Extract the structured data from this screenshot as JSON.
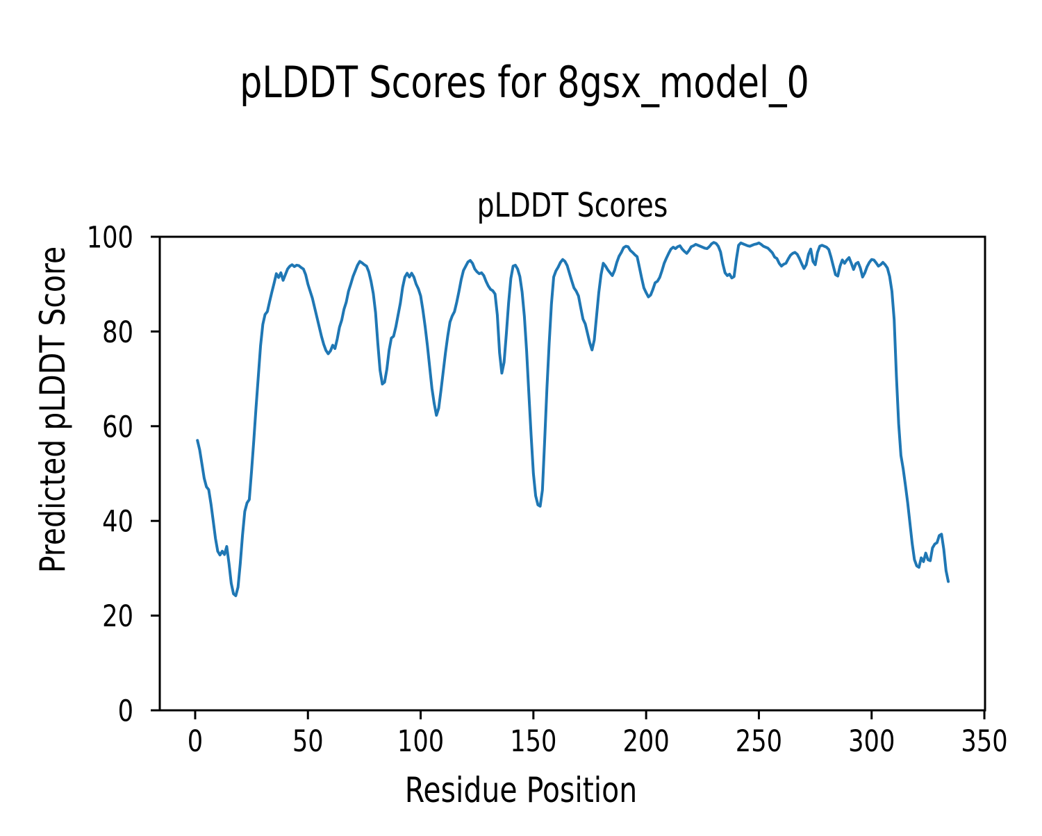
{
  "figure": {
    "suptitle": "pLDDT Scores for 8gsx_model_0",
    "background": "#ffffff"
  },
  "chart_data": {
    "type": "line",
    "title": "pLDDT Scores",
    "xlabel": "Residue Position",
    "ylabel": "Predicted pLDDT Score",
    "xlim": [
      -15.7,
      350.3
    ],
    "ylim": [
      0,
      100
    ],
    "xticks": [
      0,
      50,
      100,
      150,
      200,
      250,
      300,
      350
    ],
    "yticks": [
      0,
      20,
      40,
      60,
      80,
      100
    ],
    "grid": false,
    "legend": null,
    "line_color": "#1f77b4",
    "line_width": 4,
    "series": [
      {
        "name": "pLDDT",
        "x_start": 1,
        "x_step": 1,
        "values": [
          57.0,
          55.0,
          52.0,
          49.0,
          47.2,
          46.6,
          43.6,
          40.0,
          36.3,
          33.6,
          32.8,
          33.6,
          32.9,
          34.6,
          31.0,
          26.8,
          24.6,
          24.2,
          26.0,
          31.0,
          37.0,
          42.0,
          43.8,
          44.5,
          50.5,
          57.0,
          64.0,
          70.5,
          77.0,
          81.5,
          83.6,
          84.2,
          86.3,
          88.3,
          90.2,
          92.2,
          91.4,
          92.4,
          90.8,
          92.0,
          93.2,
          93.8,
          94.1,
          93.7,
          94.0,
          93.9,
          93.5,
          93.2,
          92.0,
          90.0,
          88.5,
          87.0,
          85.0,
          83.0,
          81.0,
          79.0,
          77.3,
          76.0,
          75.3,
          75.9,
          77.1,
          76.4,
          78.4,
          80.9,
          82.4,
          84.7,
          86.2,
          88.5,
          90.0,
          91.6,
          92.8,
          94.0,
          94.8,
          94.5,
          94.1,
          93.8,
          92.6,
          90.6,
          88.0,
          84.0,
          77.5,
          71.8,
          68.9,
          69.3,
          72.0,
          76.0,
          78.6,
          79.0,
          81.0,
          83.5,
          86.0,
          89.3,
          91.5,
          92.3,
          91.5,
          92.3,
          91.5,
          90.0,
          89.0,
          87.5,
          84.5,
          81.0,
          77.0,
          72.5,
          68.0,
          64.8,
          62.3,
          63.8,
          67.5,
          71.5,
          75.5,
          79.0,
          82.0,
          83.3,
          84.2,
          86.2,
          88.5,
          91.0,
          92.9,
          93.8,
          94.7,
          95.0,
          94.4,
          93.2,
          92.6,
          92.2,
          92.4,
          91.8,
          90.6,
          89.6,
          88.9,
          88.6,
          87.9,
          83.5,
          75.5,
          71.2,
          73.5,
          79.5,
          86.0,
          91.2,
          93.8,
          94.0,
          93.2,
          91.6,
          88.3,
          83.2,
          75.8,
          66.8,
          58.0,
          50.0,
          45.3,
          43.4,
          43.1,
          46.5,
          57.0,
          68.0,
          77.5,
          85.8,
          91.5,
          92.8,
          93.6,
          94.6,
          95.2,
          94.8,
          93.9,
          92.3,
          90.7,
          89.2,
          88.5,
          87.5,
          85.0,
          82.6,
          81.6,
          79.6,
          77.6,
          76.1,
          78.2,
          83.2,
          88.2,
          92.0,
          94.4,
          93.8,
          93.0,
          92.4,
          91.8,
          92.9,
          94.6,
          95.9,
          96.7,
          97.7,
          98.0,
          97.9,
          97.1,
          96.7,
          96.2,
          95.8,
          93.6,
          91.3,
          89.2,
          88.2,
          87.3,
          87.7,
          88.9,
          90.3,
          90.6,
          91.4,
          92.8,
          94.4,
          95.5,
          96.5,
          97.4,
          97.8,
          97.5,
          97.9,
          98.1,
          97.4,
          96.9,
          96.5,
          97.1,
          97.9,
          98.1,
          98.4,
          98.2,
          98.0,
          97.8,
          97.6,
          97.5,
          97.9,
          98.5,
          98.8,
          98.6,
          98.0,
          96.8,
          94.3,
          92.4,
          91.8,
          92.1,
          91.3,
          91.6,
          95.2,
          98.2,
          98.7,
          98.5,
          98.3,
          98.1,
          98.0,
          98.2,
          98.4,
          98.5,
          98.7,
          98.4,
          98.0,
          97.8,
          97.6,
          97.1,
          96.6,
          95.7,
          95.4,
          94.4,
          93.8,
          94.2,
          94.4,
          95.3,
          96.1,
          96.5,
          96.7,
          96.3,
          95.4,
          94.3,
          93.3,
          94.1,
          96.3,
          97.4,
          94.8,
          94.1,
          96.7,
          98.0,
          98.2,
          98.0,
          97.8,
          97.3,
          95.7,
          93.8,
          92.0,
          91.7,
          93.8,
          95.1,
          94.4,
          95.1,
          95.6,
          94.4,
          93.1,
          94.3,
          94.6,
          93.4,
          91.5,
          92.4,
          93.7,
          94.6,
          95.2,
          95.1,
          94.5,
          93.8,
          94.1,
          94.6,
          94.1,
          93.4,
          91.6,
          88.5,
          82.5,
          70.5,
          60.5,
          53.8,
          51.0,
          47.5,
          43.8,
          39.5,
          35.2,
          31.8,
          30.5,
          30.2,
          32.2,
          31.4,
          33.2,
          31.8,
          31.6,
          34.3,
          35.1,
          35.4,
          36.9,
          37.2,
          34.0,
          29.5,
          27.2
        ]
      }
    ]
  }
}
